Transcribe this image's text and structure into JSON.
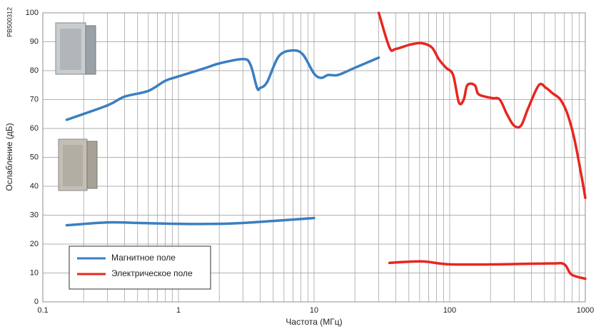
{
  "chart_data": {
    "type": "line",
    "code": "PB500312",
    "xlabel": "Частота (МГц)",
    "ylabel": "Ослабление (дБ)",
    "x_scale": "log",
    "grid": true,
    "legend": "lower left",
    "xlim": [
      0.1,
      1000
    ],
    "xticks": [
      0.1,
      1,
      10,
      100,
      1000
    ],
    "ylim": [
      0,
      100
    ],
    "yticks": [
      0,
      10,
      20,
      30,
      40,
      50,
      60,
      70,
      80,
      90,
      100
    ],
    "series": [
      {
        "name": "Магнитное поле",
        "color": "#3a7fc1",
        "x": [
          0.15,
          0.3,
          0.4,
          0.6,
          0.8,
          1,
          1.6,
          2,
          3,
          3.4,
          3.8,
          4,
          4.5,
          5.5,
          7,
          8.3,
          10,
          11.3,
          12.7,
          15,
          20,
          30,
          null,
          0.15,
          0.3,
          0.5,
          1,
          2,
          3,
          5,
          10
        ],
        "values": [
          63,
          68,
          71,
          73,
          76.5,
          78,
          81,
          82.5,
          84,
          82,
          74,
          74,
          76,
          85,
          87,
          85.5,
          79,
          77.5,
          78.5,
          78.5,
          81,
          84.5,
          null,
          26.5,
          27.5,
          27.3,
          27,
          27,
          27.3,
          28,
          29
        ]
      },
      {
        "name": "Электрическое поле",
        "color": "#e8261f",
        "x": [
          30,
          36,
          40,
          51,
          62,
          74,
          83,
          94,
          106,
          117,
          127,
          135,
          153,
          162,
          183,
          207,
          234,
          264,
          298,
          336,
          379,
          455,
          514,
          580,
          655,
          739,
          834,
          942,
          1000,
          null,
          36,
          62,
          100,
          234,
          560,
          700,
          790,
          1000
        ],
        "values": [
          100,
          88,
          87.5,
          89,
          89.5,
          88,
          84,
          81,
          78.5,
          69,
          70,
          75,
          75,
          72,
          71,
          70.5,
          70,
          65,
          61,
          61,
          67,
          75,
          74,
          72,
          70,
          65,
          56,
          43,
          36,
          null,
          13.5,
          14,
          13,
          13,
          13.3,
          13,
          9.5,
          8
        ]
      }
    ]
  }
}
